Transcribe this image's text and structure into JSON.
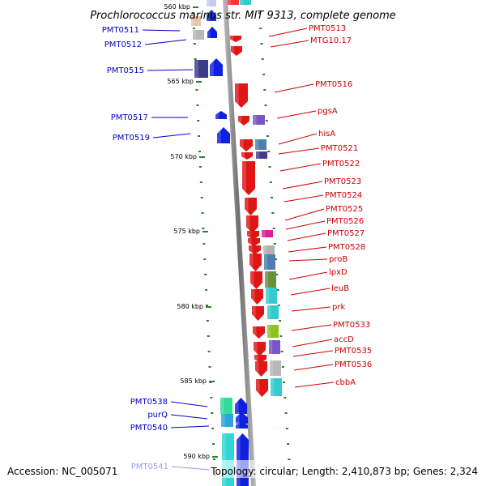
{
  "title": "Prochlorococcus marinus str. MIT 9313, complete genome",
  "accession": "Accession: NC_005071",
  "topology": "Topology: circular; Length: 2,410,873 bp; Genes: 2,324",
  "colors": {
    "forward_label": "#0000cc",
    "reverse_label": "#cc0000",
    "axis": "#8c8c8c",
    "tick": "#2e7d2e"
  },
  "scale_labels": [
    {
      "text": "560 kbp"
    },
    {
      "text": "565 kbp"
    },
    {
      "text": "570 kbp"
    },
    {
      "text": "575 kbp"
    },
    {
      "text": "580 kbp"
    },
    {
      "text": "585 kbp"
    },
    {
      "text": "590 kbp"
    }
  ],
  "left_genes": [
    {
      "label": "PMT0511"
    },
    {
      "label": "PMT0512"
    },
    {
      "label": "PMT0515"
    },
    {
      "label": "PMT0517"
    },
    {
      "label": "PMT0519"
    },
    {
      "label": "PMT0538"
    },
    {
      "label": "purQ"
    },
    {
      "label": "PMT0540"
    },
    {
      "label": "PMT0541"
    }
  ],
  "right_genes": [
    {
      "label": "PMT0513"
    },
    {
      "label": "MTG10.17"
    },
    {
      "label": "PMT0516"
    },
    {
      "label": "pgsA"
    },
    {
      "label": "hisA"
    },
    {
      "label": "PMT0521"
    },
    {
      "label": "PMT0522"
    },
    {
      "label": "PMT0523"
    },
    {
      "label": "PMT0524"
    },
    {
      "label": "PMT0525"
    },
    {
      "label": "PMT0526"
    },
    {
      "label": "PMT0527"
    },
    {
      "label": "PMT0528"
    },
    {
      "label": "proB"
    },
    {
      "label": "lpxD"
    },
    {
      "label": "leuB"
    },
    {
      "label": "prk"
    },
    {
      "label": "PMT0533"
    },
    {
      "label": "accD"
    },
    {
      "label": "PMT0535"
    },
    {
      "label": "PMT0536"
    },
    {
      "label": "cbbA"
    }
  ]
}
